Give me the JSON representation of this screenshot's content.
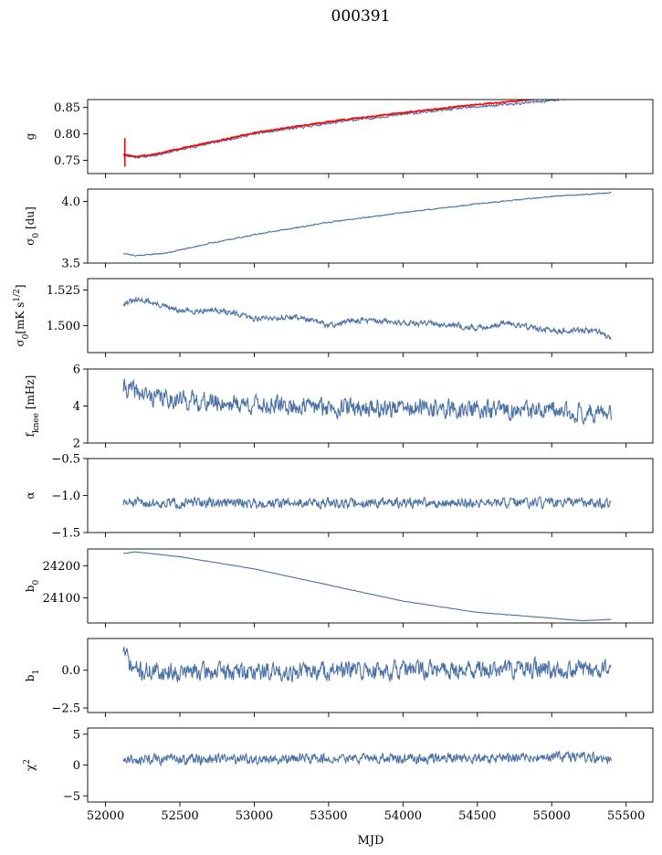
{
  "figure": {
    "title": "000391",
    "xlabel": "MJD",
    "xlim": [
      51880,
      55680
    ],
    "xticks": [
      52000,
      52500,
      53000,
      53500,
      54000,
      54500,
      55000,
      55500
    ],
    "xtick_labels": [
      "52000",
      "52500",
      "53000",
      "53500",
      "54000",
      "54500",
      "55000",
      "55500"
    ]
  },
  "colors": {
    "series": "#4c72a6",
    "fit": "#ff0000"
  },
  "chart_data": [
    {
      "type": "line",
      "ylabel": "g",
      "ylim": [
        0.725,
        0.865
      ],
      "yticks": [
        0.75,
        0.8,
        0.85
      ],
      "ytick_labels": [
        "0.75",
        "0.80",
        "0.85"
      ],
      "series": [
        {
          "x": [
            52120,
            52200,
            52300,
            52500,
            52750,
            53000,
            53300,
            53600,
            54000,
            54400,
            54800,
            55100
          ],
          "values": [
            0.76,
            0.756,
            0.758,
            0.77,
            0.785,
            0.8,
            0.812,
            0.824,
            0.837,
            0.849,
            0.858,
            0.866
          ],
          "noise": 0.002,
          "seed": 11
        },
        {
          "x": [
            52120,
            52200,
            52300,
            52500,
            52750,
            53000,
            53300,
            53600,
            54000,
            54400,
            54900
          ],
          "values": [
            0.762,
            0.757,
            0.76,
            0.772,
            0.787,
            0.802,
            0.815,
            0.827,
            0.84,
            0.853,
            0.866
          ],
          "noise": 0.001,
          "seed": 12,
          "color_key": "fit"
        }
      ]
    },
    {
      "type": "line",
      "ylabel": "σ0 [du]",
      "ylim": [
        3.5,
        4.1
      ],
      "yticks": [
        3.5,
        4.0
      ],
      "ytick_labels": [
        "3.5",
        "4.0"
      ],
      "series": [
        {
          "x": [
            52120,
            52200,
            52400,
            52700,
            53000,
            53500,
            54000,
            54500,
            55000,
            55400
          ],
          "values": [
            3.58,
            3.56,
            3.58,
            3.66,
            3.73,
            3.83,
            3.91,
            3.98,
            4.04,
            4.07
          ],
          "noise": 0.004,
          "seed": 21
        }
      ]
    },
    {
      "type": "line",
      "ylabel": "σ0[mK s1/2]",
      "ylim": [
        1.481,
        1.533
      ],
      "yticks": [
        1.5,
        1.525
      ],
      "ytick_labels": [
        "1.500",
        "1.525"
      ],
      "series": [
        {
          "x": [
            52120,
            52250,
            52500,
            52750,
            53000,
            53300,
            53500,
            53700,
            54000,
            54300,
            54500,
            54700,
            55000,
            55300,
            55400
          ],
          "values": [
            1.516,
            1.518,
            1.51,
            1.511,
            1.505,
            1.506,
            1.5,
            1.504,
            1.502,
            1.501,
            1.498,
            1.502,
            1.496,
            1.497,
            1.49
          ],
          "noise": 0.0018,
          "seed": 31
        }
      ]
    },
    {
      "type": "line",
      "ylabel": "fknee [mHz]",
      "ylim": [
        2,
        6
      ],
      "yticks": [
        2,
        4,
        6
      ],
      "ytick_labels": [
        "2",
        "4",
        "6"
      ],
      "series": [
        {
          "x": [
            52120,
            52300,
            52700,
            53200,
            53800,
            54500,
            55400
          ],
          "values": [
            5.0,
            4.5,
            4.2,
            4.0,
            3.9,
            3.8,
            3.6
          ],
          "noise": 0.45,
          "seed": 41
        }
      ]
    },
    {
      "type": "line",
      "ylabel": "α",
      "ylim": [
        -1.5,
        -0.5
      ],
      "yticks": [
        -1.5,
        -1.0,
        -0.5
      ],
      "ytick_labels": [
        "−1.5",
        "−1.0",
        "−0.5"
      ],
      "series": [
        {
          "x": [
            52120,
            55400
          ],
          "values": [
            -1.1,
            -1.1
          ],
          "noise": 0.06,
          "seed": 51
        }
      ]
    },
    {
      "type": "line",
      "ylabel": "b0",
      "ylim": [
        24022,
        24252
      ],
      "yticks": [
        24100,
        24200
      ],
      "ytick_labels": [
        "24100",
        "24200"
      ],
      "series": [
        {
          "x": [
            52120,
            52200,
            52500,
            53000,
            53500,
            54000,
            54500,
            55000,
            55200,
            55400
          ],
          "values": [
            24238,
            24243,
            24228,
            24190,
            24140,
            24090,
            24055,
            24037,
            24029,
            24033
          ],
          "noise": 0.5,
          "seed": 61
        }
      ]
    },
    {
      "type": "line",
      "ylabel": "b1",
      "ylim": [
        -2.8,
        2.1
      ],
      "yticks": [
        -2.5,
        0.0
      ],
      "ytick_labels": [
        "−2.5",
        "0.0"
      ],
      "series": [
        {
          "x": [
            52120,
            52170,
            52250,
            53000,
            54000,
            55400
          ],
          "values": [
            1.5,
            0.2,
            -0.1,
            -0.1,
            0.0,
            0.1
          ],
          "noise": 0.55,
          "seed": 71
        }
      ]
    },
    {
      "type": "line",
      "ylabel": "χ2",
      "ylim": [
        -6,
        6
      ],
      "yticks": [
        -5,
        0,
        5
      ],
      "ytick_labels": [
        "−5",
        "0",
        "5"
      ],
      "series": [
        {
          "x": [
            52120,
            53000,
            54000,
            55400
          ],
          "values": [
            0.9,
            1.0,
            1.1,
            1.2
          ],
          "noise": 0.75,
          "seed": 81
        }
      ]
    }
  ]
}
